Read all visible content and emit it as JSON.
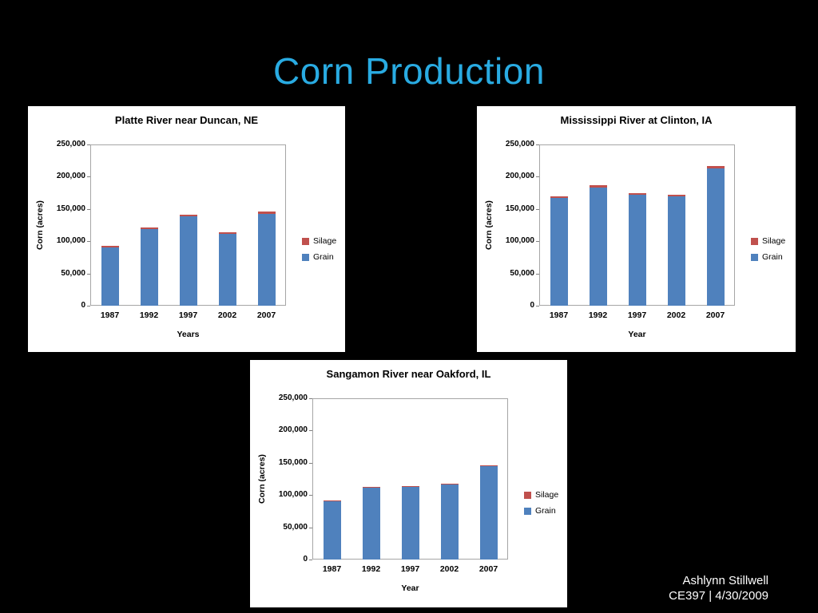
{
  "slide": {
    "title": "Corn Production",
    "credit": {
      "line1": "Ashlynn Stillwell",
      "line2": "CE397 | 4/30/2009"
    }
  },
  "colors": {
    "background": "#000000",
    "title_text": "#29ABE2",
    "credit_text": "#FFFFFF",
    "panel_background": "#FFFFFF",
    "plot_border": "#A6A6A6",
    "axis_text": "#000000",
    "grain": "#4F81BD",
    "silage": "#C0504D"
  },
  "chart_data": [
    {
      "type": "bar",
      "stacked": true,
      "title": "Platte River near Duncan, NE",
      "xlabel": "Years",
      "ylabel": "Corn (acres)",
      "ylim": [
        0,
        250000
      ],
      "yticks": [
        0,
        50000,
        100000,
        150000,
        200000,
        250000
      ],
      "ytick_labels": [
        "0",
        "50,000",
        "100,000",
        "150,000",
        "200,000",
        "250,000"
      ],
      "categories": [
        "1987",
        "1992",
        "1997",
        "2002",
        "2007"
      ],
      "series": [
        {
          "name": "Grain",
          "color": "#4F81BD",
          "values": [
            90000,
            119000,
            138000,
            112000,
            142000
          ]
        },
        {
          "name": "Silage",
          "color": "#C0504D",
          "values": [
            3000,
            2000,
            2000,
            3000,
            4000
          ]
        }
      ],
      "legend": [
        "Silage",
        "Grain"
      ],
      "legend_position": "right",
      "grid": false
    },
    {
      "type": "bar",
      "stacked": true,
      "title": "Mississippi River at Clinton, IA",
      "xlabel": "Year",
      "ylabel": "Corn (acres)",
      "ylim": [
        0,
        250000
      ],
      "yticks": [
        0,
        50000,
        100000,
        150000,
        200000,
        250000
      ],
      "ytick_labels": [
        "0",
        "50,000",
        "100,000",
        "150,000",
        "200,000",
        "250,000"
      ],
      "categories": [
        "1987",
        "1992",
        "1997",
        "2002",
        "2007"
      ],
      "series": [
        {
          "name": "Grain",
          "color": "#4F81BD",
          "values": [
            167000,
            183000,
            172000,
            170000,
            213000
          ]
        },
        {
          "name": "Silage",
          "color": "#C0504D",
          "values": [
            3000,
            4000,
            3000,
            3000,
            4000
          ]
        }
      ],
      "legend": [
        "Silage",
        "Grain"
      ],
      "legend_position": "right",
      "grid": false
    },
    {
      "type": "bar",
      "stacked": true,
      "title": "Sangamon River near Oakford, IL",
      "xlabel": "Year",
      "ylabel": "Corn (acres)",
      "ylim": [
        0,
        250000
      ],
      "yticks": [
        0,
        50000,
        100000,
        150000,
        200000,
        250000
      ],
      "ytick_labels": [
        "0",
        "50,000",
        "100,000",
        "150,000",
        "200,000",
        "250,000"
      ],
      "categories": [
        "1987",
        "1992",
        "1997",
        "2002",
        "2007"
      ],
      "series": [
        {
          "name": "Grain",
          "color": "#4F81BD",
          "values": [
            90000,
            111000,
            113000,
            116000,
            145000
          ]
        },
        {
          "name": "Silage",
          "color": "#C0504D",
          "values": [
            1000,
            1000,
            1000,
            1000,
            1000
          ]
        }
      ],
      "legend": [
        "Silage",
        "Grain"
      ],
      "legend_position": "right",
      "grid": false
    }
  ]
}
